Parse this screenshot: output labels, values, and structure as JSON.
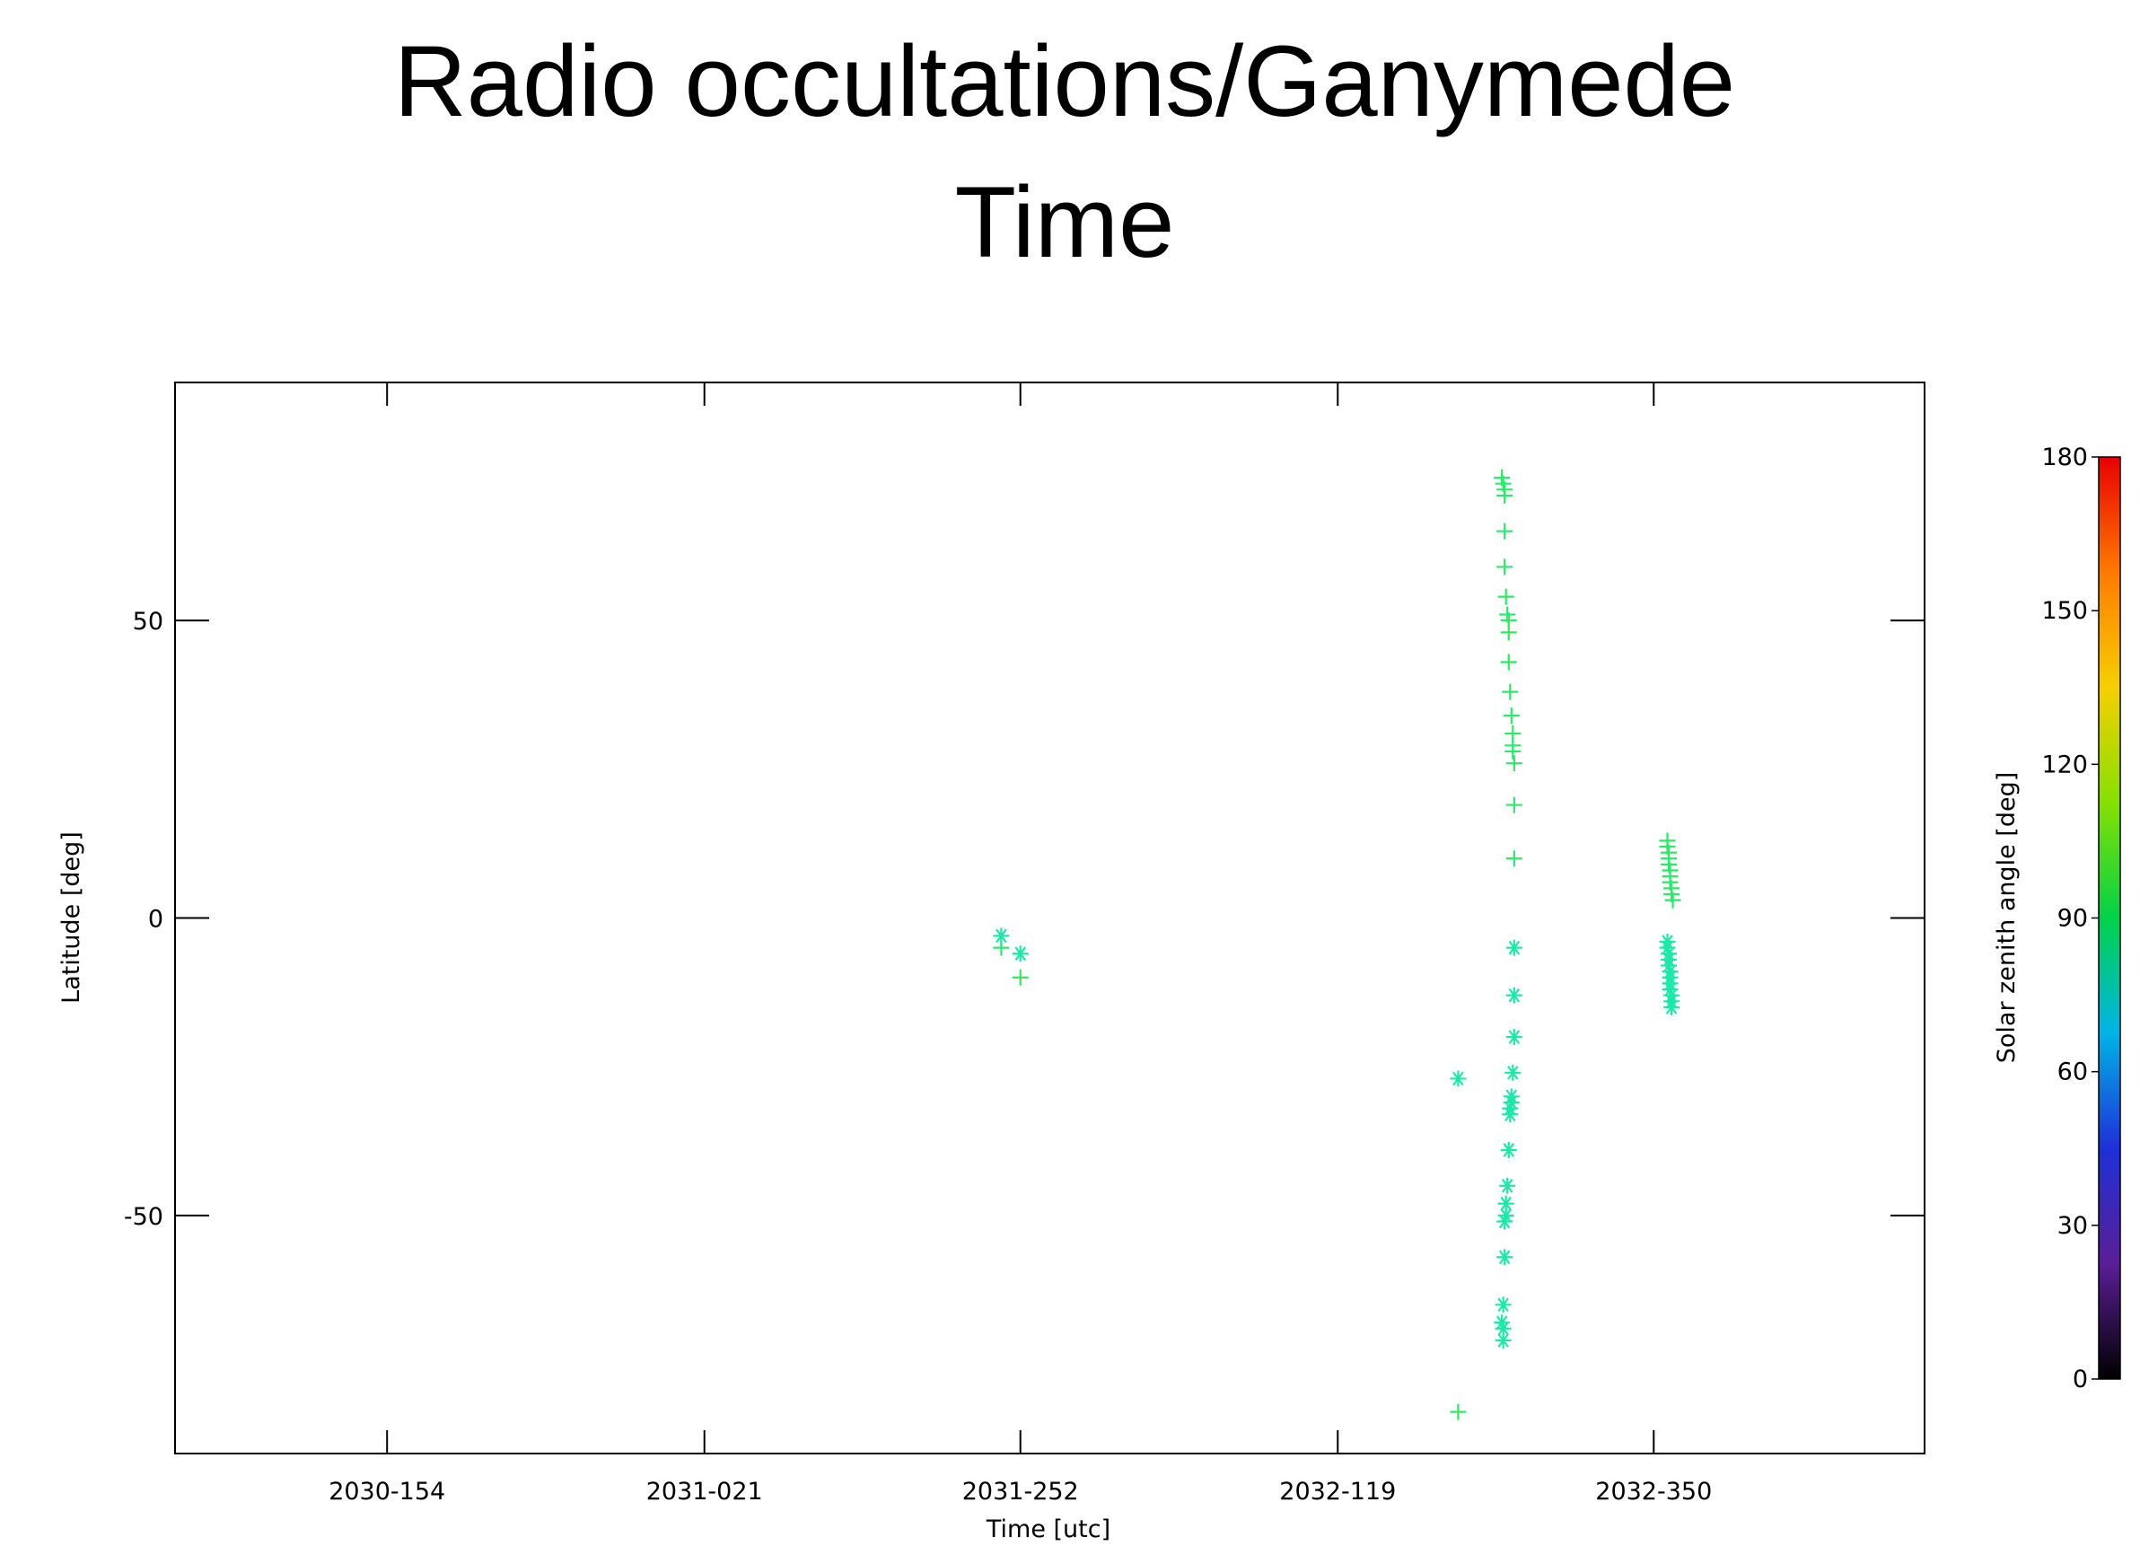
{
  "chart_data": {
    "type": "scatter",
    "title": [
      "Radio occultations/Ganymede",
      "Time"
    ],
    "x_label": "Time [utc]",
    "y_label": "Latitude [deg]",
    "xlim": [
      "2029-364",
      "2033-182"
    ],
    "xticks": [
      "2030-154",
      "2031-021",
      "2031-252",
      "2032-119",
      "2032-350"
    ],
    "ylim": [
      -90,
      90
    ],
    "yticks": [
      -50,
      0,
      50
    ],
    "series": [
      {
        "marker": "+",
        "color": "#2ee86a",
        "x": [
          "2031-238",
          "2031-252",
          "2032-207",
          "2032-239",
          "2032-240",
          "2032-241",
          "2032-241",
          "2032-241",
          "2032-241",
          "2032-242",
          "2032-243",
          "2032-244",
          "2032-244",
          "2032-244",
          "2032-245",
          "2032-246",
          "2032-247",
          "2032-247",
          "2032-247",
          "2032-248",
          "2032-248",
          "2032-248",
          "2032-360",
          "2032-360",
          "2032-361",
          "2032-361",
          "2032-361",
          "2032-362",
          "2032-362",
          "2032-362",
          "2032-363",
          "2032-363",
          "2032-364"
        ],
        "values": [
          -5,
          -10,
          -83,
          74,
          73,
          72,
          71,
          65,
          59,
          54,
          51,
          50,
          48,
          43,
          38,
          34,
          31,
          29,
          28,
          26,
          19,
          10,
          13,
          12,
          11,
          10,
          9,
          8,
          7,
          6,
          5,
          4,
          3
        ]
      },
      {
        "marker": "*",
        "color": "#1ee8a8",
        "x": [
          "2031-238",
          "2031-252",
          "2032-207",
          "2032-248",
          "2032-248",
          "2032-248",
          "2032-247",
          "2032-246",
          "2032-246",
          "2032-245",
          "2032-245",
          "2032-244",
          "2032-243",
          "2032-242",
          "2032-242",
          "2032-241",
          "2032-241",
          "2032-240",
          "2032-239",
          "2032-240",
          "2032-240",
          "2032-360",
          "2032-360",
          "2032-361",
          "2032-361",
          "2032-361",
          "2032-362",
          "2032-362",
          "2032-362",
          "2032-362",
          "2032-363",
          "2032-363",
          "2032-363"
        ],
        "values": [
          -3,
          -6,
          -27,
          -5,
          -13,
          -20,
          -26,
          -30,
          -31,
          -32,
          -33,
          -39,
          -45,
          -48,
          -50,
          -51,
          -57,
          -65,
          -68,
          -69,
          -71,
          -4,
          -5,
          -6,
          -7,
          -8,
          -9,
          -10,
          -11,
          -12,
          -13,
          -14,
          -15
        ]
      }
    ],
    "colorbar": {
      "label": "Solar zenith angle [deg]",
      "lim": [
        0,
        180
      ],
      "ticks": [
        0,
        30,
        60,
        90,
        120,
        150,
        180
      ],
      "colors": [
        "#000000",
        "#5a1e96",
        "#1e2fd8",
        "#00b4e6",
        "#00d24a",
        "#86e000",
        "#f5d000",
        "#ff7a00",
        "#e80000"
      ]
    }
  }
}
